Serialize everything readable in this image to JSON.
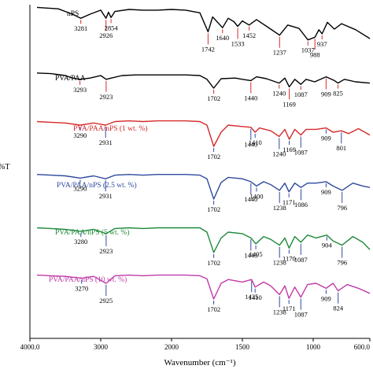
{
  "chart_data": {
    "type": "line",
    "title": "",
    "xlabel": "Wavenumber (cm⁻¹)",
    "ylabel": "%T",
    "x_reversed": true,
    "xlim": [
      4000,
      600
    ],
    "x_ticks": [
      {
        "value": 4000,
        "label": "4000.0"
      },
      {
        "value": 3000,
        "label": "3000"
      },
      {
        "value": 2000,
        "label": "2000"
      },
      {
        "value": 1500,
        "label": "1500"
      },
      {
        "value": 1000,
        "label": "1000"
      },
      {
        "value": 600,
        "label": "600.0"
      }
    ],
    "grid": false,
    "legend": "labels above each trace",
    "y_range": [
      0,
      100
    ],
    "series": [
      {
        "name": "nPS",
        "color": "#000000",
        "x": [
          3900,
          3600,
          3400,
          3281,
          3150,
          3000,
          2926,
          2890,
          2854,
          2800,
          2600,
          2400,
          2200,
          2000,
          1900,
          1800,
          1742,
          1710,
          1640,
          1600,
          1560,
          1533,
          1500,
          1452,
          1400,
          1300,
          1237,
          1180,
          1100,
          1037,
          988,
          960,
          937,
          900,
          850,
          800,
          700,
          600
        ],
        "y": [
          96,
          94,
          86,
          80,
          86,
          92,
          80,
          89,
          81,
          90,
          93,
          92,
          92,
          93,
          92,
          88,
          60,
          82,
          66,
          80,
          75,
          68,
          76,
          70,
          78,
          64,
          55,
          70,
          65,
          48,
          52,
          63,
          57,
          74,
          64,
          72,
          63,
          50
        ],
        "peak_labels": [
          "3281",
          "2926",
          "2854",
          "1742",
          "1640",
          "1533",
          "1452",
          "1237",
          "1037",
          "988",
          "937"
        ]
      },
      {
        "name": "PVA/PAA",
        "color": "#000000",
        "x": [
          3900,
          3700,
          3500,
          3400,
          3293,
          3150,
          3000,
          2923,
          2850,
          2700,
          2500,
          2300,
          2100,
          1900,
          1800,
          1750,
          1702,
          1650,
          1550,
          1500,
          1440,
          1400,
          1330,
          1240,
          1200,
          1169,
          1130,
          1087,
          1050,
          990,
          909,
          850,
          825,
          780,
          700,
          600
        ],
        "y": [
          94,
          93,
          90,
          86,
          84,
          86,
          90,
          84,
          86,
          90,
          91,
          91,
          91,
          91,
          90,
          84,
          70,
          85,
          86,
          84,
          82,
          88,
          85,
          78,
          86,
          72,
          84,
          76,
          84,
          80,
          88,
          82,
          78,
          84,
          80,
          78
        ],
        "peak_labels": [
          "3293",
          "2923",
          "1702",
          "1440",
          "1240",
          "1169",
          "1087",
          "909",
          "825"
        ]
      },
      {
        "name": "PVA/PAA/nPS (1 wt. %)",
        "color": "#d62a2a",
        "x": [
          3900,
          3700,
          3500,
          3290,
          3100,
          2931,
          2800,
          2600,
          2400,
          2200,
          2000,
          1900,
          1800,
          1750,
          1702,
          1650,
          1600,
          1500,
          1440,
          1410,
          1380,
          1300,
          1240,
          1200,
          1169,
          1130,
          1087,
          1050,
          980,
          909,
          860,
          801,
          750,
          680,
          600
        ],
        "y": [
          95,
          94,
          93,
          90,
          93,
          90,
          95,
          96,
          95,
          96,
          96,
          96,
          95,
          90,
          60,
          80,
          90,
          88,
          87,
          80,
          86,
          82,
          74,
          84,
          70,
          84,
          76,
          84,
          84,
          86,
          80,
          82,
          78,
          85,
          76
        ],
        "peak_labels": [
          "3290",
          "2931",
          "1702",
          "1440",
          "1410",
          "1240",
          "1169",
          "1087",
          "909",
          "801"
        ]
      },
      {
        "name": "PVA/PAA/nPS (2.5 wt. %)",
        "color": "#2e4a9e",
        "x": [
          3900,
          3700,
          3500,
          3290,
          3100,
          2931,
          2800,
          2600,
          2400,
          2200,
          2000,
          1900,
          1800,
          1750,
          1702,
          1650,
          1600,
          1500,
          1440,
          1400,
          1350,
          1300,
          1238,
          1200,
          1171,
          1130,
          1086,
          1040,
          980,
          909,
          860,
          796,
          720,
          650,
          600
        ],
        "y": [
          96,
          95,
          94,
          91,
          94,
          90,
          95,
          96,
          95,
          96,
          96,
          96,
          95,
          90,
          62,
          85,
          92,
          90,
          86,
          80,
          86,
          82,
          74,
          84,
          72,
          84,
          78,
          84,
          84,
          86,
          80,
          74,
          84,
          80,
          78
        ],
        "peak_labels": [
          "3290",
          "2931",
          "1702",
          "1440",
          "1400",
          "1238",
          "1171",
          "1086",
          "909",
          "796"
        ]
      },
      {
        "name": "PVA/PAA/nPS (5 wt. %)",
        "color": "#1f8a3a",
        "x": [
          3900,
          3700,
          3500,
          3280,
          3100,
          2923,
          2800,
          2600,
          2400,
          2200,
          2000,
          1900,
          1800,
          1750,
          1702,
          1650,
          1600,
          1500,
          1440,
          1405,
          1350,
          1300,
          1238,
          1200,
          1170,
          1130,
          1087,
          1040,
          980,
          904,
          860,
          796,
          720,
          650,
          600
        ],
        "y": [
          94,
          93,
          92,
          89,
          92,
          86,
          93,
          94,
          93,
          94,
          94,
          94,
          94,
          88,
          60,
          80,
          88,
          86,
          80,
          72,
          82,
          78,
          70,
          80,
          66,
          82,
          74,
          84,
          80,
          84,
          76,
          70,
          82,
          74,
          64
        ],
        "peak_labels": [
          "3280",
          "2923",
          "1702",
          "1440",
          "1405",
          "1238",
          "1170",
          "1087",
          "904",
          "796"
        ]
      },
      {
        "name": "PVA/PAA/nPS (10 wt. %)",
        "color": "#c03aa8",
        "x": [
          3900,
          3700,
          3500,
          3270,
          3100,
          2925,
          2800,
          2600,
          2400,
          2200,
          2000,
          1900,
          1800,
          1750,
          1702,
          1650,
          1600,
          1500,
          1435,
          1410,
          1350,
          1300,
          1238,
          1200,
          1171,
          1130,
          1087,
          1040,
          980,
          909,
          860,
          824,
          760,
          680,
          600
        ],
        "y": [
          93,
          92,
          91,
          88,
          91,
          80,
          92,
          93,
          92,
          93,
          93,
          93,
          92,
          87,
          55,
          80,
          86,
          82,
          86,
          74,
          82,
          76,
          62,
          76,
          56,
          74,
          58,
          78,
          80,
          72,
          80,
          68,
          78,
          72,
          64
        ],
        "peak_labels": [
          "3270",
          "2925",
          "1702",
          "1435",
          "1410",
          "1238",
          "1171",
          "1087",
          "909",
          "824"
        ]
      }
    ]
  }
}
